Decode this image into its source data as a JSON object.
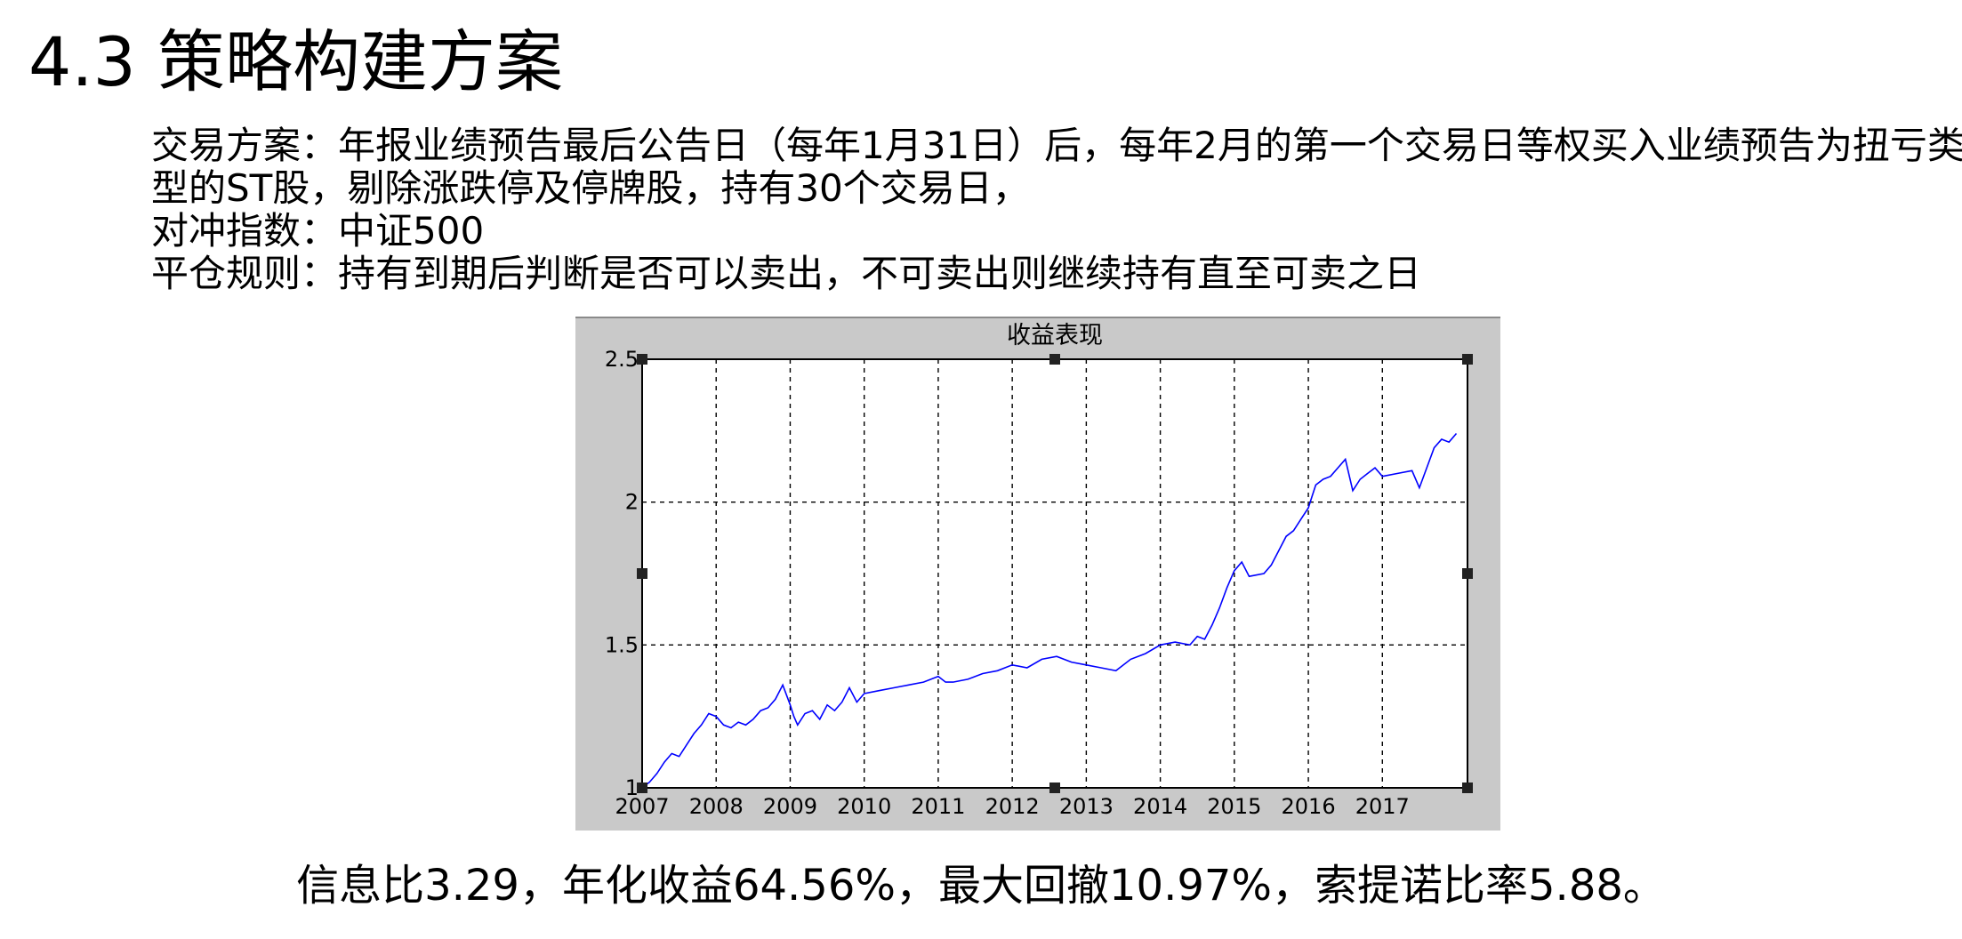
{
  "slide": {
    "title": "4.3 策略构建方案",
    "lines": [
      "交易方案：年报业绩预告最后公告日（每年1月31日）后，每年2月的第一个交易日等权买入业绩预告为扭亏类",
      "型的ST股，剔除涨跌停及停牌股，持有30个交易日，",
      "对冲指数：中证500",
      "平仓规则：持有到期后判断是否可以卖出，不可卖出则继续持有直至可卖之日"
    ],
    "summary": "信息比3.29，年化收益64.56%，最大回撤10.97%，索提诺比率5.88。"
  },
  "chart_data": {
    "type": "line",
    "title": "收益表现",
    "xlabel": "",
    "ylabel": "",
    "x_ticks": [
      "2007",
      "2008",
      "2009",
      "2010",
      "2011",
      "2012",
      "2013",
      "2014",
      "2015",
      "2016",
      "2017"
    ],
    "y_ticks": [
      "1",
      "1.5",
      "2",
      "2.5"
    ],
    "xlim": [
      2007,
      2018.15
    ],
    "ylim": [
      1,
      2.5
    ],
    "grid": true,
    "line_color": "#0000ff",
    "series": [
      {
        "x": [
          2007.0,
          2007.1,
          2007.2,
          2007.3,
          2007.4,
          2007.5,
          2007.6,
          2007.7,
          2007.8,
          2007.9,
          2008.0,
          2008.1,
          2008.2,
          2008.3,
          2008.4,
          2008.5,
          2008.6,
          2008.7,
          2008.8,
          2008.9,
          2009.0,
          2009.05,
          2009.1,
          2009.2,
          2009.3,
          2009.4,
          2009.5,
          2009.6,
          2009.7,
          2009.8,
          2009.9,
          2010.0,
          2010.2,
          2010.4,
          2010.6,
          2010.8,
          2011.0,
          2011.1,
          2011.2,
          2011.4,
          2011.6,
          2011.8,
          2012.0,
          2012.2,
          2012.4,
          2012.6,
          2012.8,
          2013.0,
          2013.2,
          2013.4,
          2013.6,
          2013.8,
          2014.0,
          2014.2,
          2014.4,
          2014.5,
          2014.6,
          2014.7,
          2014.8,
          2014.9,
          2015.0,
          2015.1,
          2015.2,
          2015.4,
          2015.5,
          2015.6,
          2015.7,
          2015.8,
          2015.9,
          2016.0,
          2016.05,
          2016.1,
          2016.2,
          2016.3,
          2016.4,
          2016.5,
          2016.6,
          2016.7,
          2016.8,
          2016.9,
          2017.0,
          2017.2,
          2017.4,
          2017.5,
          2017.6,
          2017.7,
          2017.8,
          2017.9,
          2018.0
        ],
        "y": [
          1.0,
          1.02,
          1.05,
          1.09,
          1.12,
          1.11,
          1.15,
          1.19,
          1.22,
          1.26,
          1.25,
          1.22,
          1.21,
          1.23,
          1.22,
          1.24,
          1.27,
          1.28,
          1.31,
          1.36,
          1.29,
          1.25,
          1.22,
          1.26,
          1.27,
          1.24,
          1.29,
          1.27,
          1.3,
          1.35,
          1.3,
          1.33,
          1.34,
          1.35,
          1.36,
          1.37,
          1.39,
          1.37,
          1.37,
          1.38,
          1.4,
          1.41,
          1.43,
          1.42,
          1.45,
          1.46,
          1.44,
          1.43,
          1.42,
          1.41,
          1.45,
          1.47,
          1.5,
          1.51,
          1.5,
          1.53,
          1.52,
          1.57,
          1.63,
          1.7,
          1.76,
          1.79,
          1.74,
          1.75,
          1.78,
          1.83,
          1.88,
          1.9,
          1.94,
          1.98,
          2.02,
          2.06,
          2.08,
          2.09,
          2.12,
          2.15,
          2.04,
          2.08,
          2.1,
          2.12,
          2.09,
          2.1,
          2.11,
          2.05,
          2.12,
          2.19,
          2.22,
          2.21,
          2.24
        ]
      }
    ]
  }
}
